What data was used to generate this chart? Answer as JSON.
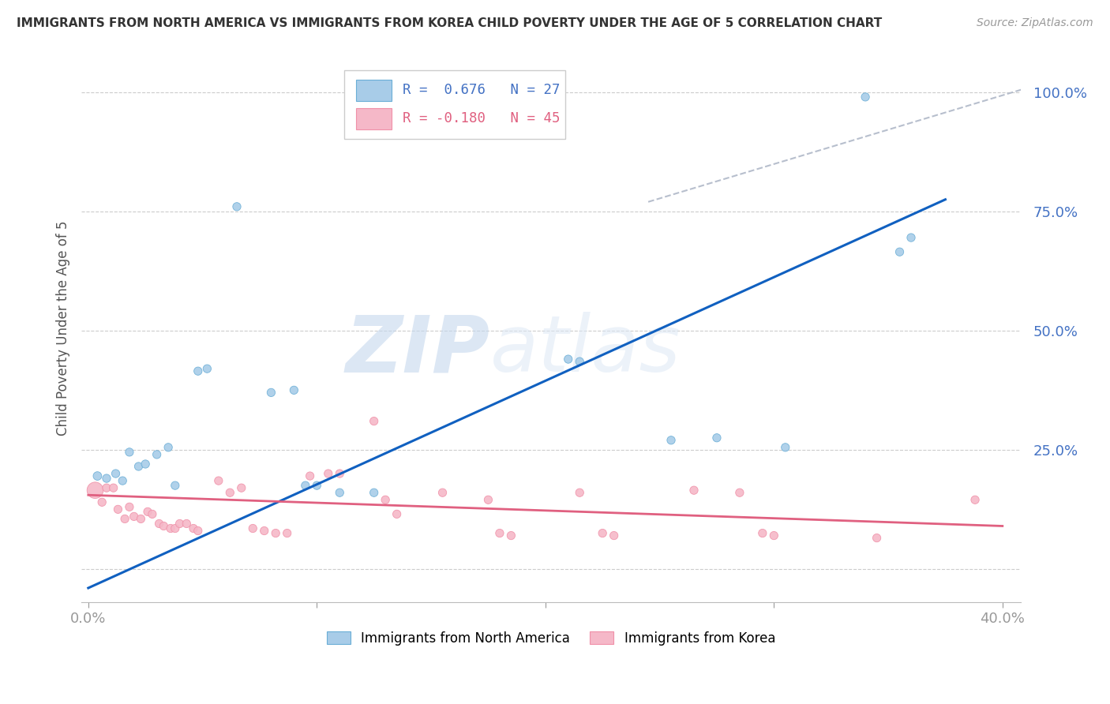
{
  "title": "IMMIGRANTS FROM NORTH AMERICA VS IMMIGRANTS FROM KOREA CHILD POVERTY UNDER THE AGE OF 5 CORRELATION CHART",
  "source": "Source: ZipAtlas.com",
  "ylabel": "Child Poverty Under the Age of 5",
  "yticks": [
    0.0,
    0.25,
    0.5,
    0.75,
    1.0
  ],
  "ytick_labels": [
    "",
    "25.0%",
    "50.0%",
    "75.0%",
    "100.0%"
  ],
  "xlim": [
    -0.003,
    0.408
  ],
  "ylim": [
    -0.07,
    1.08
  ],
  "blue_R": "0.676",
  "blue_N": "27",
  "pink_R": "-0.180",
  "pink_N": "45",
  "blue_color": "#a8cce8",
  "pink_color": "#f5b8c8",
  "blue_edge": "#6aaed6",
  "pink_edge": "#f090a8",
  "trend_blue": "#1060c0",
  "trend_pink": "#e06080",
  "trend_gray": "#b0b8c8",
  "watermark_zip": "ZIP",
  "watermark_atlas": "atlas",
  "north_america_points": [
    [
      0.004,
      0.195
    ],
    [
      0.008,
      0.19
    ],
    [
      0.012,
      0.2
    ],
    [
      0.015,
      0.185
    ],
    [
      0.018,
      0.245
    ],
    [
      0.022,
      0.215
    ],
    [
      0.025,
      0.22
    ],
    [
      0.03,
      0.24
    ],
    [
      0.035,
      0.255
    ],
    [
      0.038,
      0.175
    ],
    [
      0.048,
      0.415
    ],
    [
      0.052,
      0.42
    ],
    [
      0.065,
      0.76
    ],
    [
      0.08,
      0.37
    ],
    [
      0.09,
      0.375
    ],
    [
      0.095,
      0.175
    ],
    [
      0.1,
      0.175
    ],
    [
      0.11,
      0.16
    ],
    [
      0.125,
      0.16
    ],
    [
      0.21,
      0.44
    ],
    [
      0.215,
      0.435
    ],
    [
      0.255,
      0.27
    ],
    [
      0.275,
      0.275
    ],
    [
      0.305,
      0.255
    ],
    [
      0.34,
      0.99
    ],
    [
      0.355,
      0.665
    ],
    [
      0.36,
      0.695
    ]
  ],
  "korea_points": [
    [
      0.003,
      0.165
    ],
    [
      0.006,
      0.14
    ],
    [
      0.008,
      0.17
    ],
    [
      0.011,
      0.17
    ],
    [
      0.013,
      0.125
    ],
    [
      0.016,
      0.105
    ],
    [
      0.018,
      0.13
    ],
    [
      0.02,
      0.11
    ],
    [
      0.023,
      0.105
    ],
    [
      0.026,
      0.12
    ],
    [
      0.028,
      0.115
    ],
    [
      0.031,
      0.095
    ],
    [
      0.033,
      0.09
    ],
    [
      0.036,
      0.085
    ],
    [
      0.038,
      0.085
    ],
    [
      0.04,
      0.095
    ],
    [
      0.043,
      0.095
    ],
    [
      0.046,
      0.085
    ],
    [
      0.048,
      0.08
    ],
    [
      0.057,
      0.185
    ],
    [
      0.062,
      0.16
    ],
    [
      0.067,
      0.17
    ],
    [
      0.072,
      0.085
    ],
    [
      0.077,
      0.08
    ],
    [
      0.082,
      0.075
    ],
    [
      0.087,
      0.075
    ],
    [
      0.097,
      0.195
    ],
    [
      0.105,
      0.2
    ],
    [
      0.11,
      0.2
    ],
    [
      0.125,
      0.31
    ],
    [
      0.13,
      0.145
    ],
    [
      0.135,
      0.115
    ],
    [
      0.155,
      0.16
    ],
    [
      0.175,
      0.145
    ],
    [
      0.18,
      0.075
    ],
    [
      0.185,
      0.07
    ],
    [
      0.215,
      0.16
    ],
    [
      0.225,
      0.075
    ],
    [
      0.23,
      0.07
    ],
    [
      0.265,
      0.165
    ],
    [
      0.285,
      0.16
    ],
    [
      0.295,
      0.075
    ],
    [
      0.3,
      0.07
    ],
    [
      0.345,
      0.065
    ],
    [
      0.388,
      0.145
    ]
  ],
  "north_america_sizes": [
    60,
    55,
    55,
    55,
    55,
    55,
    55,
    55,
    55,
    55,
    55,
    55,
    55,
    55,
    55,
    55,
    55,
    55,
    55,
    55,
    55,
    55,
    55,
    55,
    55,
    55,
    55
  ],
  "korea_sizes_large": [
    220
  ],
  "korea_sizes_small": 55,
  "blue_line_x": [
    0.0,
    0.375
  ],
  "blue_line_y": [
    -0.04,
    0.775
  ],
  "pink_line_x": [
    0.0,
    0.4
  ],
  "pink_line_y": [
    0.155,
    0.09
  ],
  "gray_line_x": [
    0.245,
    0.46
  ],
  "gray_line_y": [
    0.77,
    1.08
  ]
}
